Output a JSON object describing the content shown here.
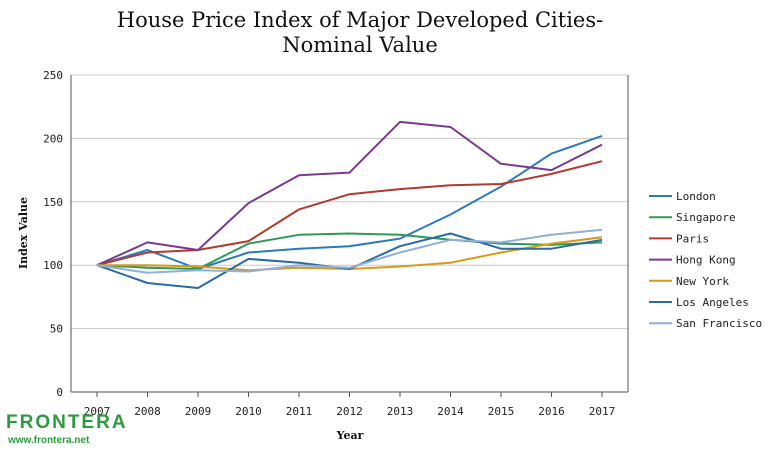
{
  "chart_data": {
    "type": "line",
    "title": "House Price Index of Major Developed Cities-\nNominal Value",
    "xlabel": "Year",
    "ylabel": "Index Value",
    "x": [
      "2007",
      "2008",
      "2009",
      "2010",
      "2011",
      "2012",
      "2013",
      "2014",
      "2015",
      "2016",
      "2017"
    ],
    "ylim": [
      0,
      250
    ],
    "yticks": [
      0,
      50,
      100,
      150,
      200,
      250
    ],
    "grid": "horizontal",
    "legend_position": "right",
    "series": [
      {
        "name": "London",
        "color": "#2b7bb9",
        "values": [
          100,
          112,
          97,
          110,
          113,
          115,
          121,
          140,
          162,
          188,
          202
        ]
      },
      {
        "name": "Singapore",
        "color": "#2e9a5a",
        "values": [
          100,
          98,
          97,
          117,
          124,
          125,
          124,
          120,
          117,
          116,
          118
        ]
      },
      {
        "name": "Paris",
        "color": "#b23a2e",
        "values": [
          100,
          110,
          112,
          119,
          144,
          156,
          160,
          163,
          164,
          172,
          182
        ]
      },
      {
        "name": "Hong Kong",
        "color": "#7a3b8f",
        "values": [
          100,
          118,
          112,
          149,
          171,
          173,
          213,
          209,
          180,
          175,
          195
        ]
      },
      {
        "name": "New York",
        "color": "#d49a1a",
        "values": [
          100,
          100,
          99,
          96,
          98,
          97,
          99,
          102,
          110,
          117,
          122
        ]
      },
      {
        "name": "Los Angeles",
        "color": "#2a6aa5",
        "values": [
          100,
          86,
          82,
          105,
          102,
          97,
          115,
          125,
          113,
          113,
          120
        ]
      },
      {
        "name": "San Francisco",
        "color": "#8fb0d6",
        "values": [
          100,
          94,
          96,
          95,
          100,
          98,
          110,
          120,
          118,
          124,
          128
        ]
      }
    ]
  },
  "watermark": {
    "brand": "FRONTERA",
    "url": "www.frontera.net"
  }
}
